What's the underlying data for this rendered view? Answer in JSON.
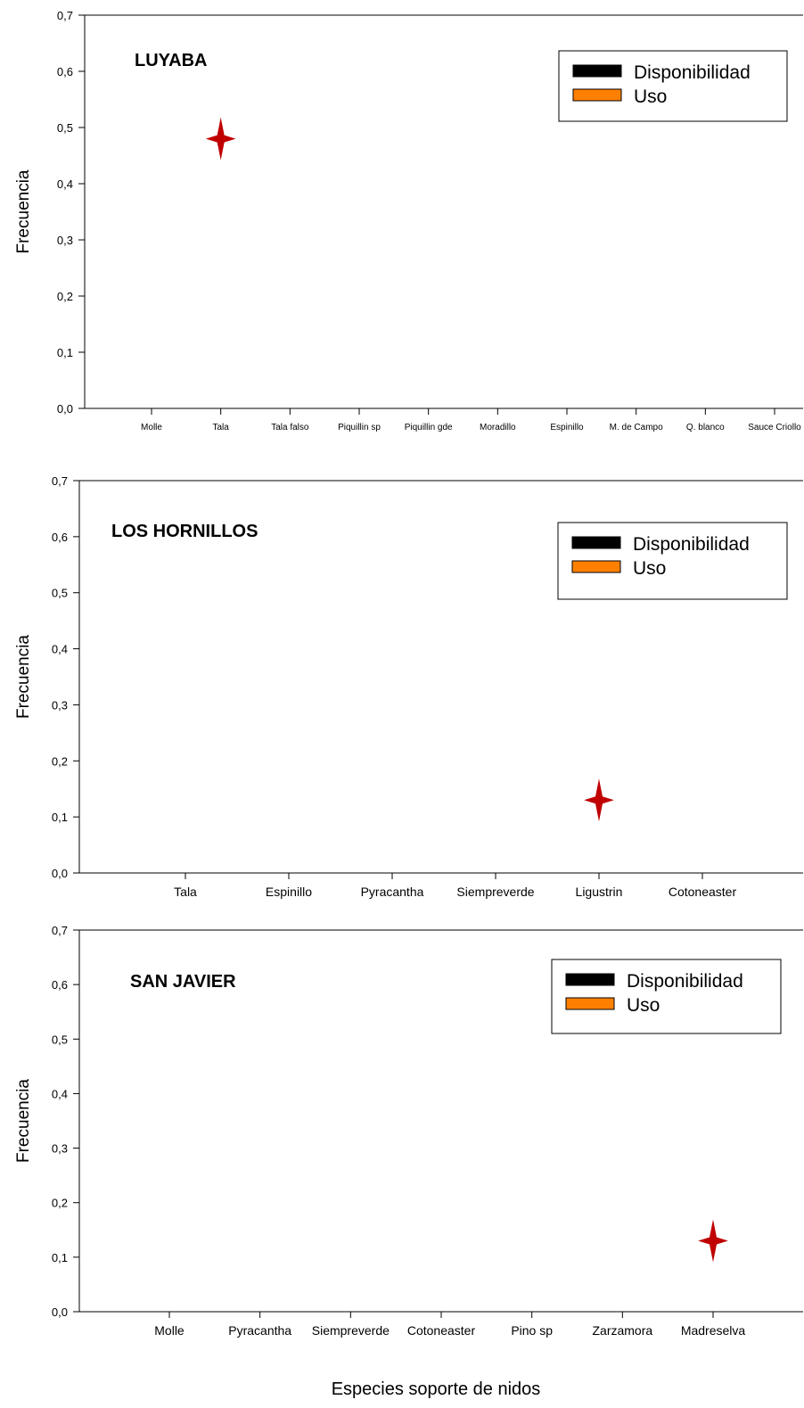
{
  "chart_data": [
    {
      "type": "scatter",
      "title": "LUYABA",
      "ylabel": "Frecuencia",
      "ylim": [
        0,
        0.7
      ],
      "yticks": [
        "0,0",
        "0,1",
        "0,2",
        "0,3",
        "0,4",
        "0,5",
        "0,6",
        "0,7"
      ],
      "categories": [
        "Molle",
        "Tala",
        "Tala falso",
        "Piquillin sp",
        "Piquillin gde",
        "Moradillo",
        "Espinillo",
        "M. de Campo",
        "Q. blanco",
        "Sauce Criollo"
      ],
      "legend": [
        "Disponibilidad",
        "Uso"
      ],
      "legend_colors": [
        "#000000",
        "#ff8000"
      ],
      "marker_color": "#c00000",
      "points": [
        {
          "category": "Tala",
          "value": 0.48
        }
      ]
    },
    {
      "type": "scatter",
      "title": "LOS HORNILLOS",
      "ylabel": "Frecuencia",
      "ylim": [
        0,
        0.7
      ],
      "yticks": [
        "0,0",
        "0,1",
        "0,2",
        "0,3",
        "0,4",
        "0,5",
        "0,6",
        "0,7"
      ],
      "categories": [
        "Tala",
        "Espinillo",
        "Pyracantha",
        "Siempreverde",
        "Ligustrin",
        "Cotoneaster"
      ],
      "legend": [
        "Disponibilidad",
        "Uso"
      ],
      "legend_colors": [
        "#000000",
        "#ff8000"
      ],
      "marker_color": "#c00000",
      "points": [
        {
          "category": "Ligustrin",
          "value": 0.13
        }
      ]
    },
    {
      "type": "scatter",
      "title": "SAN JAVIER",
      "ylabel": "Frecuencia",
      "xlabel": "Especies soporte de nidos",
      "ylim": [
        0,
        0.7
      ],
      "yticks": [
        "0,0",
        "0,1",
        "0,2",
        "0,3",
        "0,4",
        "0,5",
        "0,6",
        "0,7"
      ],
      "categories": [
        "Molle",
        "Pyracantha",
        "Siempreverde",
        "Cotoneaster",
        "Pino sp",
        "Zarzamora",
        "Madreselva"
      ],
      "legend": [
        "Disponibilidad",
        "Uso"
      ],
      "legend_colors": [
        "#000000",
        "#ff8000"
      ],
      "marker_color": "#c00000",
      "points": [
        {
          "category": "Madreselva",
          "value": 0.13
        }
      ]
    }
  ]
}
